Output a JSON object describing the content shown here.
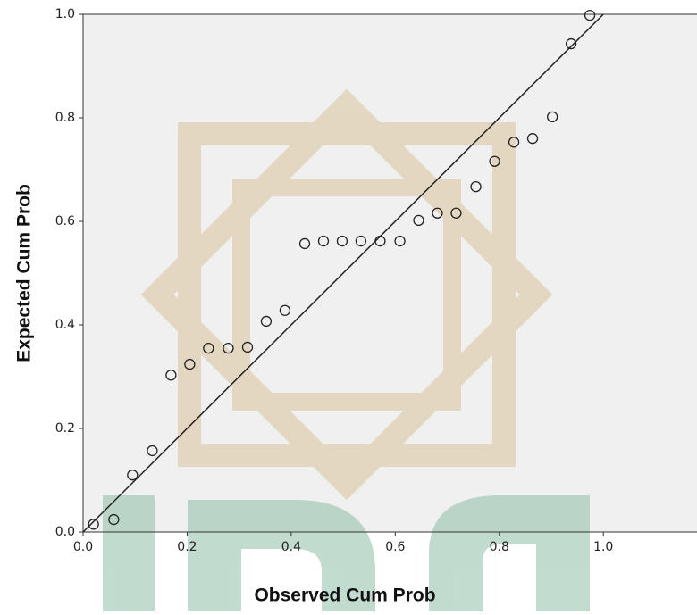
{
  "chart_data": {
    "type": "scatter",
    "x_label": "Observed Cum Prob",
    "y_label": "Expected Cum Prob",
    "xlim": [
      0,
      1.18
    ],
    "ylim": [
      0,
      1
    ],
    "xticks": [
      {
        "value": 0,
        "label": "0.0"
      },
      {
        "value": 0.2,
        "label": "0.2"
      },
      {
        "value": 0.4,
        "label": "0.4"
      },
      {
        "value": 0.6,
        "label": "0.6"
      },
      {
        "value": 0.8,
        "label": "0.8"
      },
      {
        "value": 1,
        "label": "1.0"
      }
    ],
    "yticks": [
      {
        "value": 0,
        "label": "0.0"
      },
      {
        "value": 0.2,
        "label": "0.2"
      },
      {
        "value": 0.4,
        "label": "0.4"
      },
      {
        "value": 0.6,
        "label": "0.6"
      },
      {
        "value": 0.8,
        "label": "0.8"
      },
      {
        "value": 1,
        "label": "1.0"
      }
    ],
    "reference_line": {
      "x": [
        0,
        1
      ],
      "y": [
        0,
        1
      ]
    },
    "color": "#222222",
    "x": [
      0.02,
      0.059,
      0.095,
      0.133,
      0.169,
      0.205,
      0.241,
      0.279,
      0.316,
      0.352,
      0.388,
      0.426,
      0.462,
      0.498,
      0.534,
      0.571,
      0.609,
      0.645,
      0.681,
      0.717,
      0.755,
      0.791,
      0.828,
      0.864,
      0.902,
      0.938,
      0.974
    ],
    "values": [
      0.015,
      0.024,
      0.11,
      0.157,
      0.303,
      0.324,
      0.355,
      0.355,
      0.357,
      0.407,
      0.428,
      0.557,
      0.562,
      0.562,
      0.562,
      0.562,
      0.562,
      0.602,
      0.616,
      0.616,
      0.667,
      0.716,
      0.753,
      0.76,
      0.802,
      0.943,
      0.998
    ]
  }
}
